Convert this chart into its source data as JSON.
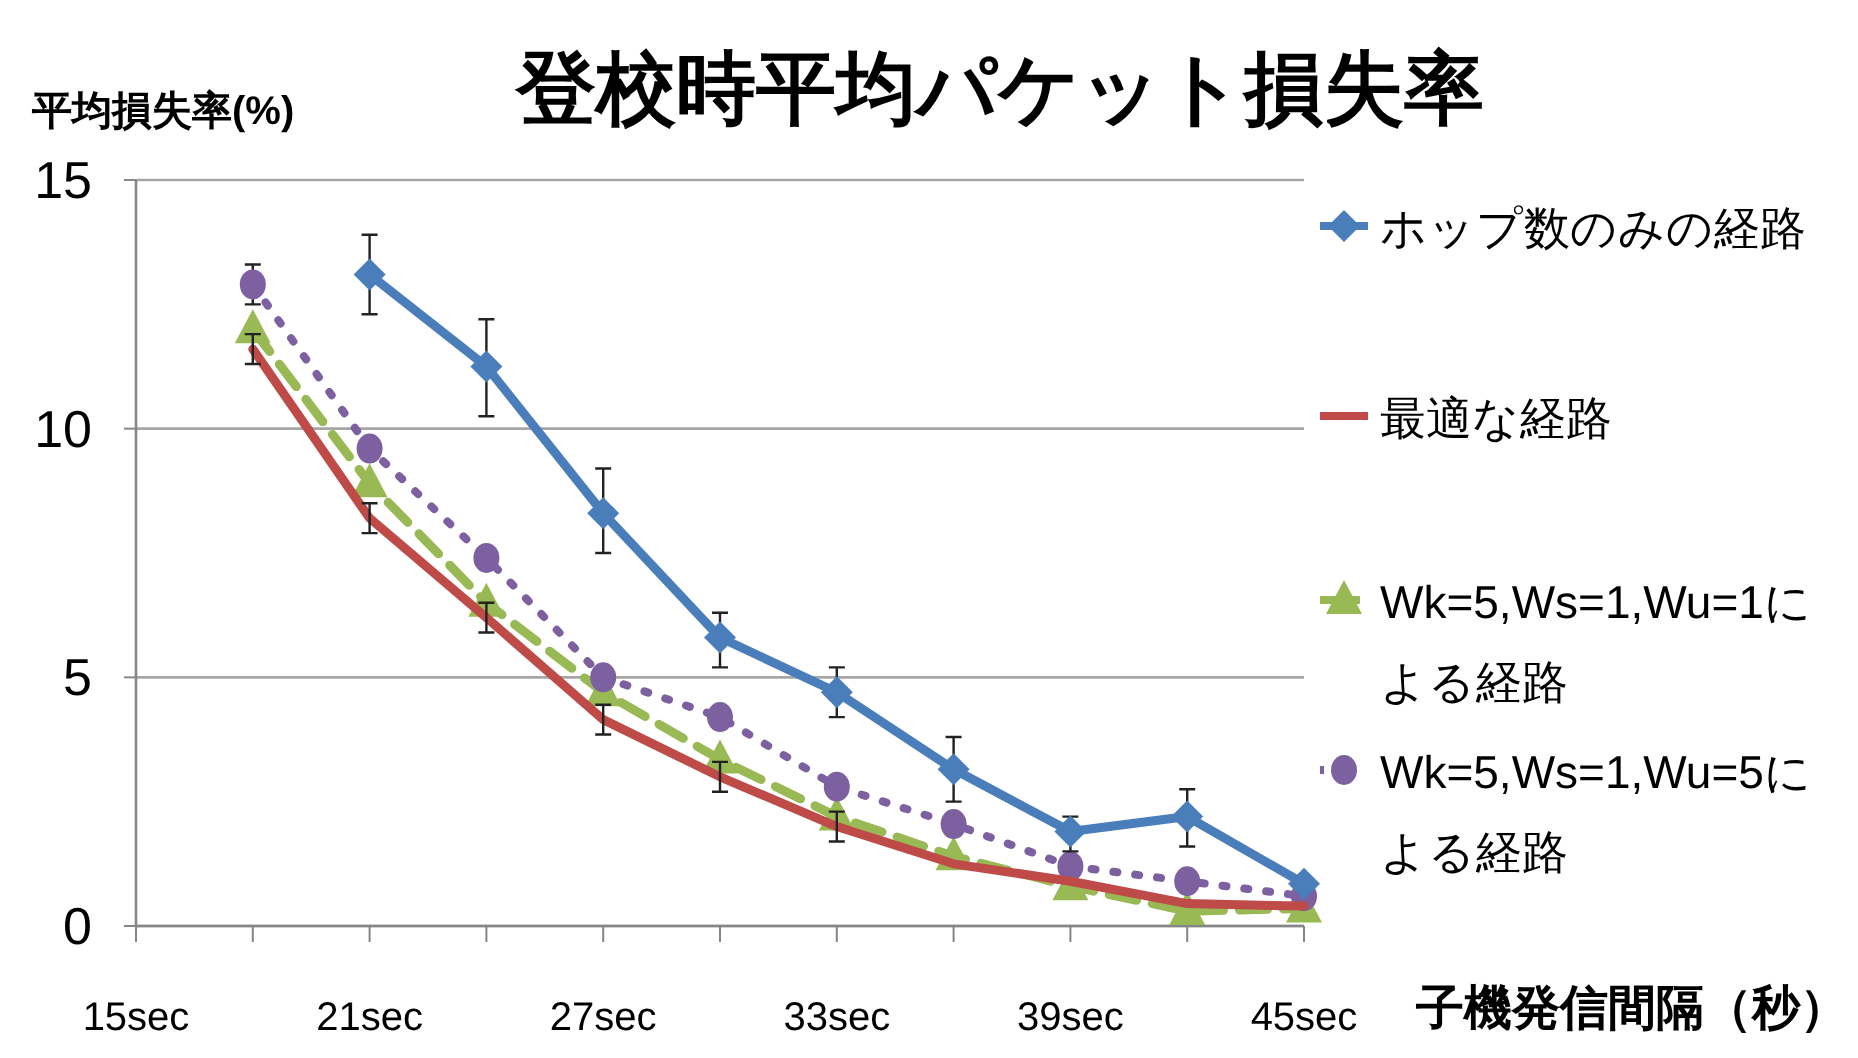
{
  "chart_data": {
    "type": "line",
    "title": "登校時平均パケット損失率",
    "ylabel": "平均損失率(%)",
    "xlabel": "子機発信間隔（秒）",
    "categories": [
      "15sec",
      null,
      "21sec",
      null,
      "27sec",
      null,
      "33sec",
      null,
      "39sec",
      null,
      "45sec"
    ],
    "series": [
      {
        "name": "ホップ数のみの経路",
        "color": "#4a7ebb",
        "marker": "diamond",
        "line_style": "solid",
        "values": [
          null,
          null,
          13.1,
          11.25,
          8.3,
          5.8,
          4.7,
          3.15,
          1.9,
          2.2,
          0.85
        ],
        "errors": [
          null,
          null,
          [
            12.3,
            13.9
          ],
          [
            10.25,
            12.2
          ],
          [
            7.5,
            9.2
          ],
          [
            5.2,
            6.3
          ],
          [
            4.2,
            5.2
          ],
          [
            2.5,
            3.8
          ],
          [
            1.5,
            2.2
          ],
          [
            1.6,
            2.75
          ],
          null
        ]
      },
      {
        "name": "最適な経路",
        "color": "#be4b48",
        "marker": "none",
        "line_style": "solid",
        "values": [
          null,
          11.6,
          8.2,
          6.2,
          4.15,
          3.0,
          2.0,
          1.25,
          0.9,
          0.45,
          0.4
        ],
        "errors": [
          null,
          0.3,
          0.3,
          0.3,
          0.3,
          0.3,
          0.3,
          null,
          null,
          null,
          null
        ]
      },
      {
        "name": "Wk=5,Ws=1,Wu=1による経路",
        "color": "#98b954",
        "marker": "triangle",
        "line_style": "dashed",
        "values": [
          null,
          12.0,
          8.9,
          6.5,
          4.7,
          3.35,
          2.2,
          1.4,
          0.8,
          0.3,
          0.35
        ]
      },
      {
        "name": "Wk=5,Ws=1,Wu=5による経路",
        "color": "#7d60a0",
        "marker": "circle",
        "line_style": "dotted",
        "values": [
          null,
          12.9,
          9.6,
          7.4,
          5.0,
          4.2,
          2.8,
          2.05,
          1.2,
          0.9,
          0.6
        ],
        "errors": [
          null,
          [
            12.5,
            13.3
          ],
          null,
          null,
          null,
          null,
          null,
          null,
          null,
          null,
          null
        ]
      }
    ],
    "ylim": [
      0,
      15
    ],
    "yticks": [
      0,
      5,
      10,
      15
    ],
    "grid": "y",
    "legend": "right"
  }
}
